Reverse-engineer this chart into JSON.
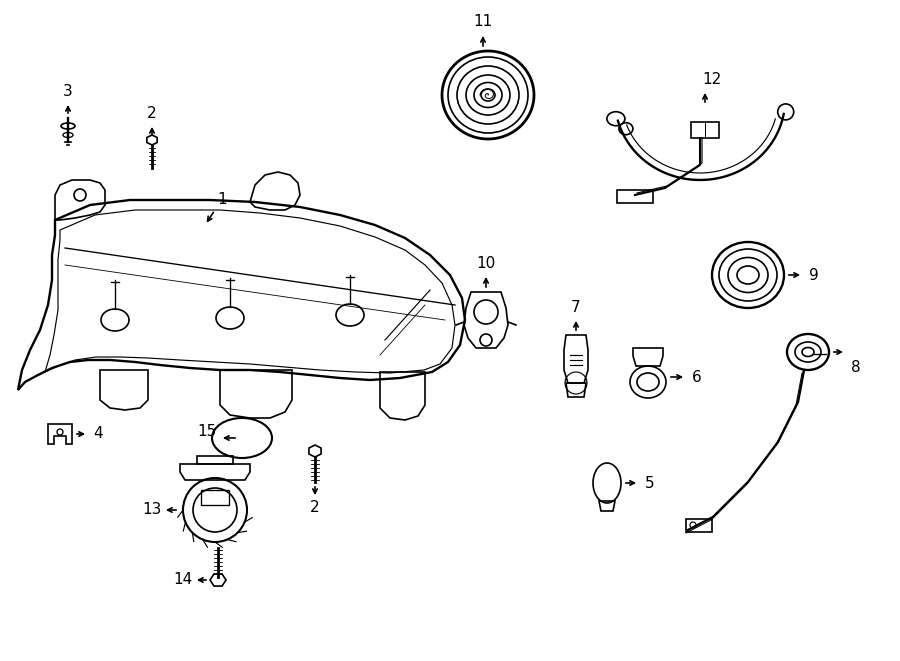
{
  "background_color": "#ffffff",
  "line_color": "#000000",
  "lw": 1.2
}
